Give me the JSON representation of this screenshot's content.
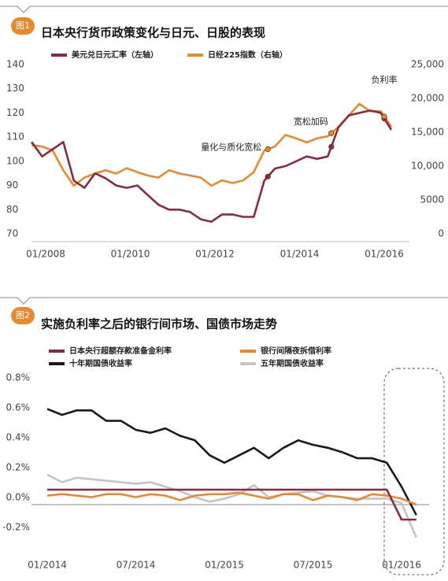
{
  "chart_data": [
    {
      "type": "line",
      "badge": "图1",
      "title": "日本央行货币政策变化与日元、日股的表现",
      "x": [
        "09/2007",
        "12/2007",
        "03/2008",
        "06/2008",
        "09/2008",
        "12/2008",
        "03/2009",
        "06/2009",
        "09/2009",
        "12/2009",
        "03/2010",
        "06/2010",
        "09/2010",
        "12/2010",
        "03/2011",
        "06/2011",
        "09/2011",
        "12/2011",
        "03/2012",
        "06/2012",
        "09/2012",
        "12/2012",
        "03/2013",
        "06/2013",
        "09/2013",
        "12/2013",
        "03/2014",
        "06/2014",
        "09/2014",
        "12/2014",
        "03/2015",
        "06/2015",
        "09/2015",
        "12/2015",
        "03/2016"
      ],
      "xticks": [
        "01/2008",
        "01/2010",
        "01/2012",
        "01/2014",
        "01/2016"
      ],
      "series": [
        {
          "name": "美元兑日元汇率（左轴）",
          "color": "#8b2a3e",
          "axis": "y",
          "values": [
            108,
            102,
            105,
            108,
            92,
            89,
            95,
            93,
            90,
            89,
            90,
            86,
            82,
            80,
            80,
            79,
            76,
            75,
            78,
            78,
            77,
            77,
            92,
            97,
            98,
            100,
            102,
            101,
            102,
            114,
            119,
            120,
            121,
            120,
            113
          ]
        },
        {
          "name": "日经225指数（右轴）",
          "color": "#e8892f",
          "axis": "y2",
          "values": [
            13100,
            12900,
            12300,
            9400,
            7100,
            8300,
            8900,
            9400,
            8900,
            9700,
            9100,
            8600,
            8300,
            9400,
            8900,
            8600,
            8300,
            7100,
            7900,
            7500,
            7900,
            9100,
            12300,
            12900,
            14600,
            14100,
            13500,
            14100,
            14400,
            15800,
            17500,
            19200,
            18100,
            18100,
            15800
          ]
        }
      ],
      "ylim": [
        70,
        140
      ],
      "yticks": [
        70,
        80,
        90,
        100,
        110,
        120,
        130,
        140
      ],
      "y2lim": [
        0,
        25000
      ],
      "y2ticks": [
        0,
        5000,
        {
          "value": 10000,
          "label": "10,000"
        },
        {
          "value": 15000,
          "label": "15,000"
        },
        {
          "value": 20000,
          "label": "20,000"
        },
        {
          "value": 25000,
          "label": "25,000"
        }
      ],
      "annotations": [
        {
          "text": "量化与质化宽松",
          "x": "04/2013"
        },
        {
          "text": "宽松加码",
          "x": "10/2014"
        },
        {
          "text": "负利率",
          "x": "01/2016"
        }
      ],
      "grid": false
    },
    {
      "type": "line",
      "badge": "图2",
      "title": "实施负利率之后的银行间市场、国债市场走势",
      "x": [
        "01/2014",
        "02/2014",
        "03/2014",
        "04/2014",
        "05/2014",
        "06/2014",
        "07/2014",
        "08/2014",
        "09/2014",
        "10/2014",
        "11/2014",
        "12/2014",
        "01/2015",
        "02/2015",
        "03/2015",
        "04/2015",
        "05/2015",
        "06/2015",
        "07/2015",
        "08/2015",
        "09/2015",
        "10/2015",
        "11/2015",
        "12/2015",
        "01/2016",
        "02/2016"
      ],
      "xticks": [
        "01/2014",
        "07/2014",
        "01/2015",
        "07/2015",
        "01/2016"
      ],
      "series": [
        {
          "name": "日本央行超额存款准备金利率",
          "color": "#8b2a3e",
          "values": [
            0.1,
            0.1,
            0.1,
            0.1,
            0.1,
            0.1,
            0.1,
            0.1,
            0.1,
            0.1,
            0.1,
            0.1,
            0.1,
            0.1,
            0.1,
            0.1,
            0.1,
            0.1,
            0.1,
            0.1,
            0.1,
            0.1,
            0.1,
            0.1,
            -0.1,
            -0.1
          ]
        },
        {
          "name": "银行间隔夜拆借利率",
          "color": "#e8892f",
          "values": [
            0.06,
            0.07,
            0.06,
            0.05,
            0.07,
            0.07,
            0.05,
            0.07,
            0.06,
            0.03,
            0.06,
            0.07,
            0.07,
            0.08,
            0.06,
            0.04,
            0.07,
            0.07,
            0.03,
            0.06,
            0.05,
            0.03,
            0.07,
            0.06,
            0.04,
            0.0
          ]
        },
        {
          "name": "十年期国债收益率",
          "color": "#1a1a1a",
          "values": [
            0.64,
            0.6,
            0.63,
            0.63,
            0.56,
            0.56,
            0.5,
            0.48,
            0.51,
            0.46,
            0.43,
            0.33,
            0.28,
            0.33,
            0.38,
            0.31,
            0.38,
            0.43,
            0.4,
            0.38,
            0.35,
            0.31,
            0.31,
            0.28,
            0.12,
            -0.07
          ]
        },
        {
          "name": "五年期国债收益率",
          "color": "#c4c4c4",
          "values": [
            0.2,
            0.15,
            0.18,
            0.17,
            0.16,
            0.15,
            0.14,
            0.15,
            0.12,
            0.09,
            0.05,
            0.02,
            0.04,
            0.07,
            0.13,
            0.05,
            0.07,
            0.08,
            0.09,
            0.06,
            0.05,
            0.04,
            0.04,
            0.04,
            0.01,
            -0.22
          ]
        }
      ],
      "ylim": [
        -0.2,
        0.8
      ],
      "yticks": [
        {
          "value": -0.2,
          "label": "-0.2%"
        },
        {
          "value": 0,
          "label": "0.0%"
        },
        {
          "value": 0.2,
          "label": "0.2%"
        },
        {
          "value": 0.4,
          "label": "0.4%"
        },
        {
          "value": 0.6,
          "label": "0.6%"
        },
        {
          "value": 0.8,
          "label": "0.8%"
        }
      ],
      "grid": false
    }
  ]
}
